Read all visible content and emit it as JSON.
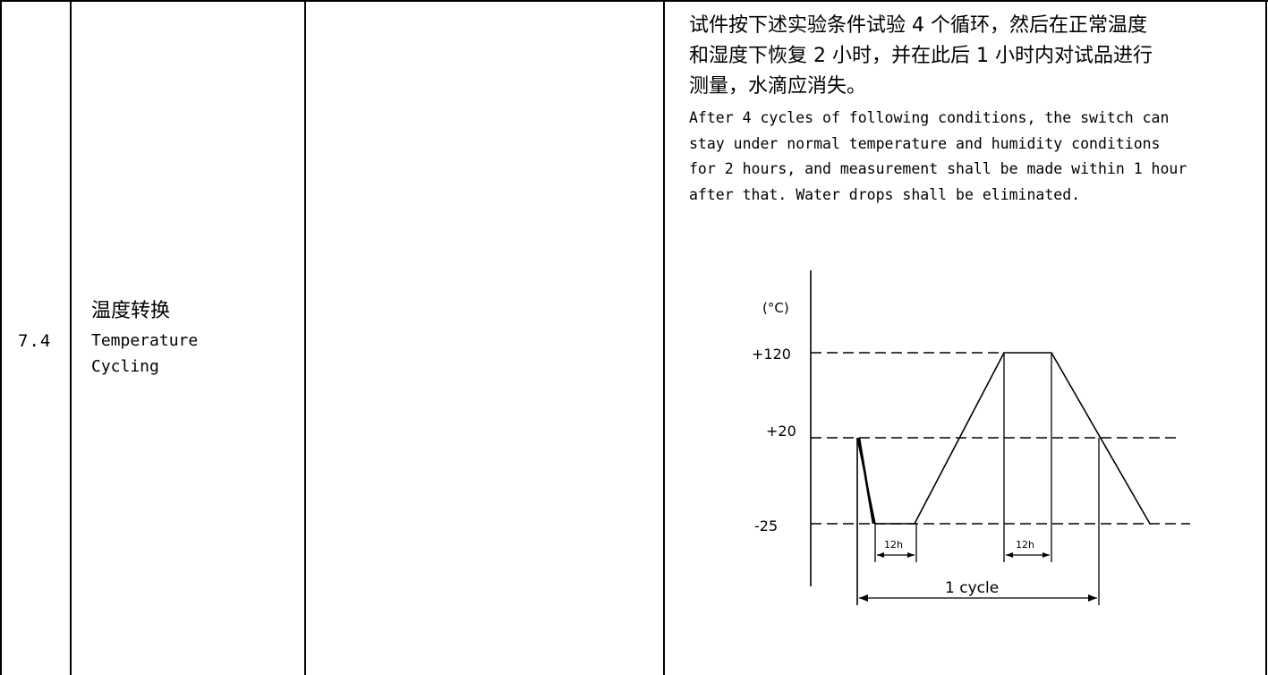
{
  "row": {
    "number": "7.4",
    "item_cn": "温度转换",
    "item_en_line1": "Temperature",
    "item_en_line2": "Cycling"
  },
  "requirement": {
    "cn": "试件按下述实验条件试验 4 个循环，然后在正常温度\n和湿度下恢复 2 小时，并在此后 1 小时内对试品进行\n测量，水滴应消失。",
    "en": "After 4 cycles of following conditions, the switch can\nstay under normal temperature and humidity conditions\nfor 2 hours, and measurement shall be made within 1 hour\nafter that. Water drops shall be eliminated."
  },
  "diagram": {
    "unit_label": "(°C)",
    "levels": [
      "+120",
      "+20",
      "-25"
    ],
    "dwell_label_1": "12h",
    "dwell_label_2": "12h",
    "cycle_label": "1 cycle"
  }
}
